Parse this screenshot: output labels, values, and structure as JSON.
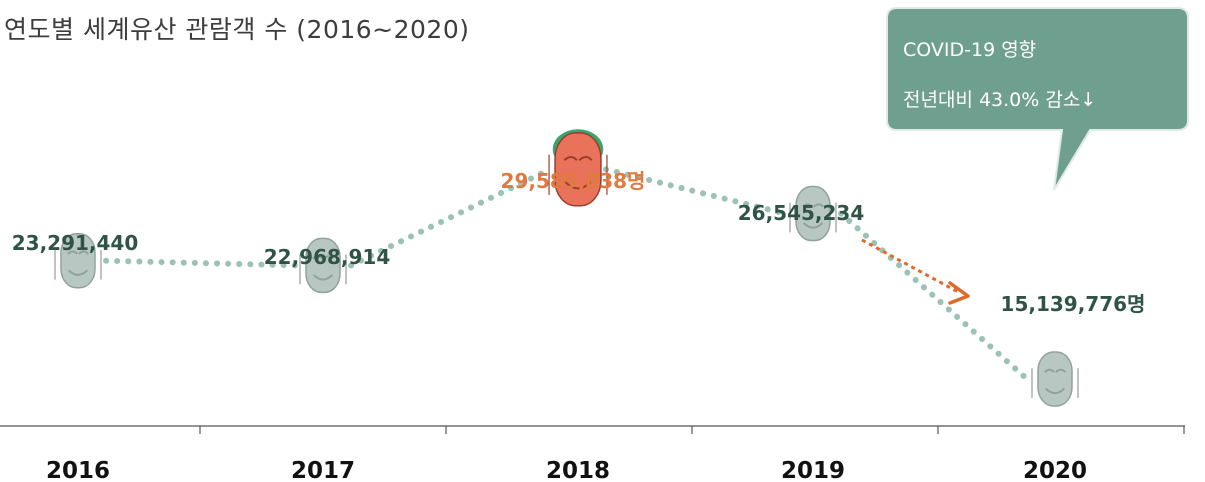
{
  "title": "연도별 세계유산 관람객 수 (2016~2020)",
  "callout": {
    "line1": "COVID-19  영향",
    "line2": "전년대비 43.0% 감소↓"
  },
  "colors": {
    "dots": "#9cc2b5",
    "mask": "#b9c7c2",
    "mask_peak": "#e8735a",
    "mask_peak_hair": "#3aa56c",
    "value_label": "#2f5446",
    "peak_label": "#e07a3f",
    "callout_bg": "#6f9f8e",
    "arrow": "#e06a2c",
    "axis": "#555555"
  },
  "chart_data": {
    "type": "line",
    "title": "연도별 세계유산 관람객 수 (2016~2020)",
    "categories": [
      "2016",
      "2017",
      "2018",
      "2019",
      "2020"
    ],
    "series": [
      {
        "values": [
          23291440,
          22968914,
          29589838,
          26545234,
          15139776
        ]
      }
    ],
    "labels": [
      "23,291,440",
      "22,968,914",
      "29,589,838명",
      "26,545,234",
      "15,139,776명"
    ],
    "annotations": [
      "COVID-19  영향",
      "전년대비 43.0% 감소↓"
    ],
    "grid": false,
    "legend": "none"
  }
}
